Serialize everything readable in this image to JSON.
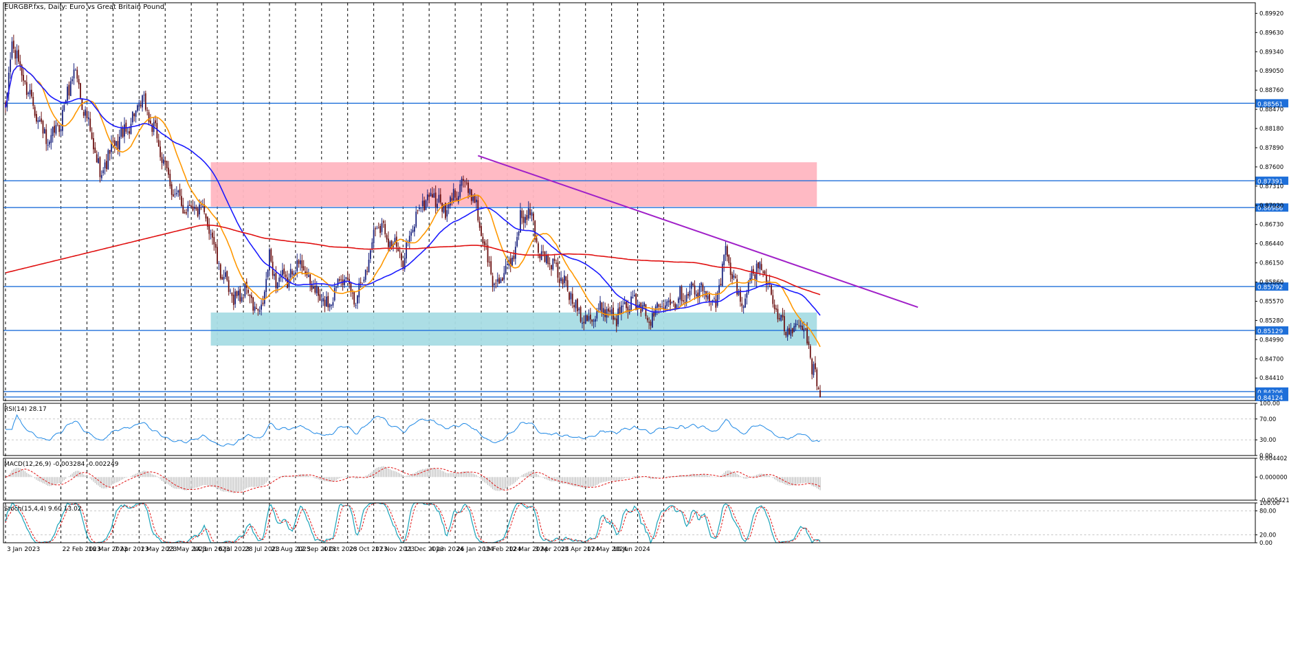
{
  "window": {
    "symbol_label": "EURGBP.fxs, Daily:  Euro vs Great Britain Pound"
  },
  "colors": {
    "bull_candle": "#1a237e",
    "bear_candle": "#6b1010",
    "ma_fast": "#ff9800",
    "ma_mid": "#1a1aff",
    "ma_slow": "#e01010",
    "level_line": "#1e6fd9",
    "trendline": "#a020c8",
    "resistance_zone": "#ffb6c1",
    "support_zone": "#a8dce4",
    "rsi_line": "#1e88e5",
    "macd_hist": "#b0b0b0",
    "macd_signal": "#e01010",
    "stoch_main": "#17a2b8",
    "stoch_signal": "#e01010",
    "price_tag": "#1e6fd9"
  },
  "chart_data": [
    {
      "type": "candlestick",
      "panel": "price",
      "title": "EURGBP.fxs, Daily:  Euro vs Great Britain Pound",
      "x_ticks": [
        "3 Jan 2023",
        "22 Feb 2023",
        "16 Mar 2023",
        "7 Apr 2023",
        "1 May 2023",
        "23 May 2023",
        "14 Jun 2023",
        "6 Jul 2023",
        "28 Jul 2023",
        "21 Aug 2023",
        "12 Sep 2023",
        "4 Oct 2023",
        "26 Oct 2023",
        "17 Nov 2023",
        "11 Dec 2023",
        "4 Jan 2024",
        "26 Jan 2024",
        "19 Feb 2024",
        "12 Mar 2024",
        "3 Apr 2024",
        "25 Apr 2024",
        "17 May 2024",
        "10 Jun 2024"
      ],
      "y_ticks": [
        "0.89920",
        "0.89630",
        "0.89340",
        "0.89050",
        "0.88760",
        "0.88470",
        "0.88180",
        "0.87890",
        "0.87600",
        "0.87310",
        "0.87020",
        "0.86730",
        "0.86440",
        "0.86150",
        "0.85860",
        "0.85570",
        "0.85280",
        "0.84990",
        "0.84700",
        "0.84410"
      ],
      "ylim": [
        0.8407,
        0.9008
      ],
      "price_path": [
        {
          "i": 0,
          "p": 0.884
        },
        {
          "i": 4,
          "p": 0.895
        },
        {
          "i": 10,
          "p": 0.89
        },
        {
          "i": 18,
          "p": 0.885
        },
        {
          "i": 26,
          "p": 0.879
        },
        {
          "i": 34,
          "p": 0.883
        },
        {
          "i": 42,
          "p": 0.891
        },
        {
          "i": 50,
          "p": 0.883
        },
        {
          "i": 58,
          "p": 0.875
        },
        {
          "i": 66,
          "p": 0.879
        },
        {
          "i": 74,
          "p": 0.8815
        },
        {
          "i": 84,
          "p": 0.886
        },
        {
          "i": 92,
          "p": 0.881
        },
        {
          "i": 100,
          "p": 0.874
        },
        {
          "i": 108,
          "p": 0.87
        },
        {
          "i": 116,
          "p": 0.87
        },
        {
          "i": 124,
          "p": 0.868
        },
        {
          "i": 132,
          "p": 0.86
        },
        {
          "i": 140,
          "p": 0.856
        },
        {
          "i": 148,
          "p": 0.8575
        },
        {
          "i": 156,
          "p": 0.853
        },
        {
          "i": 162,
          "p": 0.862
        },
        {
          "i": 166,
          "p": 0.859
        },
        {
          "i": 174,
          "p": 0.859
        },
        {
          "i": 180,
          "p": 0.862
        },
        {
          "i": 190,
          "p": 0.857
        },
        {
          "i": 198,
          "p": 0.855
        },
        {
          "i": 206,
          "p": 0.86
        },
        {
          "i": 214,
          "p": 0.856
        },
        {
          "i": 222,
          "p": 0.861
        },
        {
          "i": 228,
          "p": 0.868
        },
        {
          "i": 236,
          "p": 0.865
        },
        {
          "i": 244,
          "p": 0.862
        },
        {
          "i": 254,
          "p": 0.87
        },
        {
          "i": 262,
          "p": 0.872
        },
        {
          "i": 270,
          "p": 0.869
        },
        {
          "i": 280,
          "p": 0.874
        },
        {
          "i": 288,
          "p": 0.871
        },
        {
          "i": 294,
          "p": 0.864
        },
        {
          "i": 300,
          "p": 0.858
        },
        {
          "i": 310,
          "p": 0.861
        },
        {
          "i": 316,
          "p": 0.868
        },
        {
          "i": 322,
          "p": 0.869
        },
        {
          "i": 328,
          "p": 0.863
        },
        {
          "i": 336,
          "p": 0.861
        },
        {
          "i": 344,
          "p": 0.858
        },
        {
          "i": 352,
          "p": 0.854
        },
        {
          "i": 360,
          "p": 0.853
        },
        {
          "i": 368,
          "p": 0.855
        },
        {
          "i": 374,
          "p": 0.853
        },
        {
          "i": 380,
          "p": 0.856
        },
        {
          "i": 388,
          "p": 0.855
        },
        {
          "i": 396,
          "p": 0.853
        },
        {
          "i": 404,
          "p": 0.856
        },
        {
          "i": 412,
          "p": 0.856
        },
        {
          "i": 420,
          "p": 0.8575
        },
        {
          "i": 428,
          "p": 0.857
        },
        {
          "i": 436,
          "p": 0.8555
        },
        {
          "i": 442,
          "p": 0.863
        },
        {
          "i": 448,
          "p": 0.858
        },
        {
          "i": 452,
          "p": 0.855
        },
        {
          "i": 458,
          "p": 0.86
        },
        {
          "i": 464,
          "p": 0.861
        },
        {
          "i": 470,
          "p": 0.857
        },
        {
          "i": 476,
          "p": 0.852
        },
        {
          "i": 482,
          "p": 0.851
        },
        {
          "i": 488,
          "p": 0.852
        },
        {
          "i": 492,
          "p": 0.85
        },
        {
          "i": 494,
          "p": 0.847
        },
        {
          "i": 498,
          "p": 0.843
        },
        {
          "i": 500,
          "p": 0.8412
        }
      ],
      "moving_averages": [
        {
          "period": 20,
          "color_key": "ma_fast"
        },
        {
          "period": 50,
          "color_key": "ma_mid"
        },
        {
          "period": 200,
          "color_key": "ma_slow"
        }
      ],
      "horizontal_levels": [
        {
          "value": 0.88561,
          "label": "0.88561"
        },
        {
          "value": 0.87391,
          "label": "0.87391"
        },
        {
          "value": 0.86986,
          "label": "0.86986"
        },
        {
          "value": 0.85792,
          "label": "0.85792"
        },
        {
          "value": 0.85129,
          "label": "0.85129"
        },
        {
          "value": 0.84206,
          "label": "0.84206"
        },
        {
          "value": 0.84124,
          "label": "0.84124"
        }
      ],
      "zones": [
        {
          "name": "resistance",
          "from_index": 126,
          "to_index": 498,
          "top": 0.8767,
          "bottom": 0.87
        },
        {
          "name": "support",
          "from_index": 126,
          "to_index": 498,
          "top": 0.854,
          "bottom": 0.849
        }
      ],
      "trendline": {
        "from": {
          "i": 290,
          "p": 0.8777
        },
        "to": {
          "i": 560,
          "p": 0.8548
        }
      }
    },
    {
      "type": "line",
      "panel": "rsi",
      "label": "RSI(14) 28.17",
      "y_ticks": [
        "100.00",
        "70.00",
        "30.00",
        "0.00"
      ],
      "ylim": [
        0,
        100
      ],
      "levels": [
        70,
        30
      ]
    },
    {
      "type": "histogram",
      "panel": "macd",
      "label": "MACD(12,26,9) -0.003284 -0.002249",
      "y_ticks": [
        "0.004402",
        "0.000000",
        "-0.005421"
      ],
      "ylim": [
        -0.005421,
        0.004402
      ]
    },
    {
      "type": "line",
      "panel": "stoch",
      "label": "Stoch(15,4,4) 9.60 13.02",
      "y_ticks": [
        "100.00",
        "80.00",
        "20.00",
        "0.00"
      ],
      "ylim": [
        0,
        100
      ],
      "levels": [
        80,
        20
      ]
    }
  ]
}
